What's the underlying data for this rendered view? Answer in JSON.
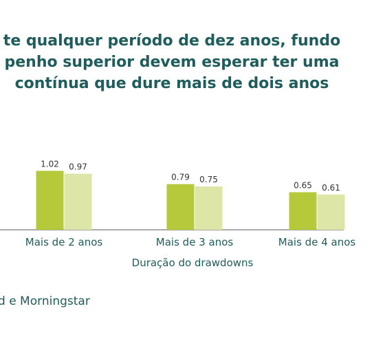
{
  "title_lines": [
    "te qualquer período de dez anos, fundo",
    "penho superior devem esperar ter uma",
    "contínua que dure mais de dois anos"
  ],
  "source_text": "d e Morningstar",
  "chart_data": {
    "type": "bar",
    "categories": [
      "Mais de 2 anos",
      "Mais de 3 anos",
      "Mais de 4 anos"
    ],
    "series": [
      {
        "values": [
          1.02,
          0.79,
          0.65
        ],
        "color": "#b5c93a"
      },
      {
        "values": [
          0.97,
          0.75,
          0.61
        ],
        "color": "#dde6a6"
      }
    ],
    "xlabel": "Duração do drawdowns",
    "ylabel": "",
    "ylim": [
      0,
      1.2
    ],
    "grid": false,
    "legend": "none"
  }
}
